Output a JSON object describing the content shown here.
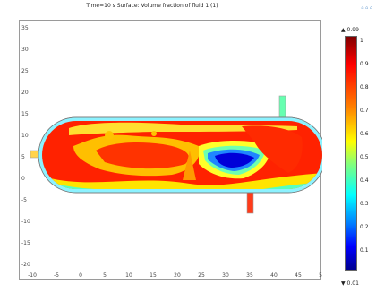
{
  "window": {
    "title": "Time=10 s    Surface: Volume fraction of fluid 1 (1)"
  },
  "axes": {
    "x_ticks": [
      "-10",
      "-5",
      "0",
      "5",
      "10",
      "15",
      "20",
      "25",
      "30",
      "35",
      "40",
      "45",
      "50"
    ],
    "y_ticks": [
      "35",
      "30",
      "25",
      "20",
      "15",
      "10",
      "5",
      "0",
      "-5",
      "-10",
      "-15",
      "-20"
    ]
  },
  "colorbar": {
    "max_label": "▲ 0.99",
    "min_label": "▼ 0.01",
    "ticks": [
      "1",
      "0.9",
      "0.8",
      "0.7",
      "0.6",
      "0.5",
      "0.4",
      "0.3",
      "0.2",
      "0.1"
    ],
    "colors": {
      "high": "#ff0000",
      "mid": "#ffff00",
      "low": "#0000ff"
    }
  },
  "logo": "⌂ ⌂ ⌂"
}
